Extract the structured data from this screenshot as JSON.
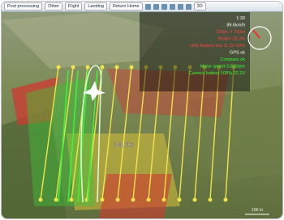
{
  "toolbar": {
    "items": [
      "Post processing",
      "Other",
      "Flight",
      "Landing",
      "Return Home",
      "3D"
    ]
  },
  "status": {
    "lines": [
      "1:33",
      "89.6km/h",
      "236m ↗ 782m",
      "953km 28.3%",
      "UAV Battery low 11.1V 50%",
      "GPS ok",
      "Compass ok",
      "Motor speed 3,500rpm",
      "Camera battery 100% 22.2V"
    ]
  },
  "map": {
    "label": "34.6s",
    "scale": "100 m"
  }
}
